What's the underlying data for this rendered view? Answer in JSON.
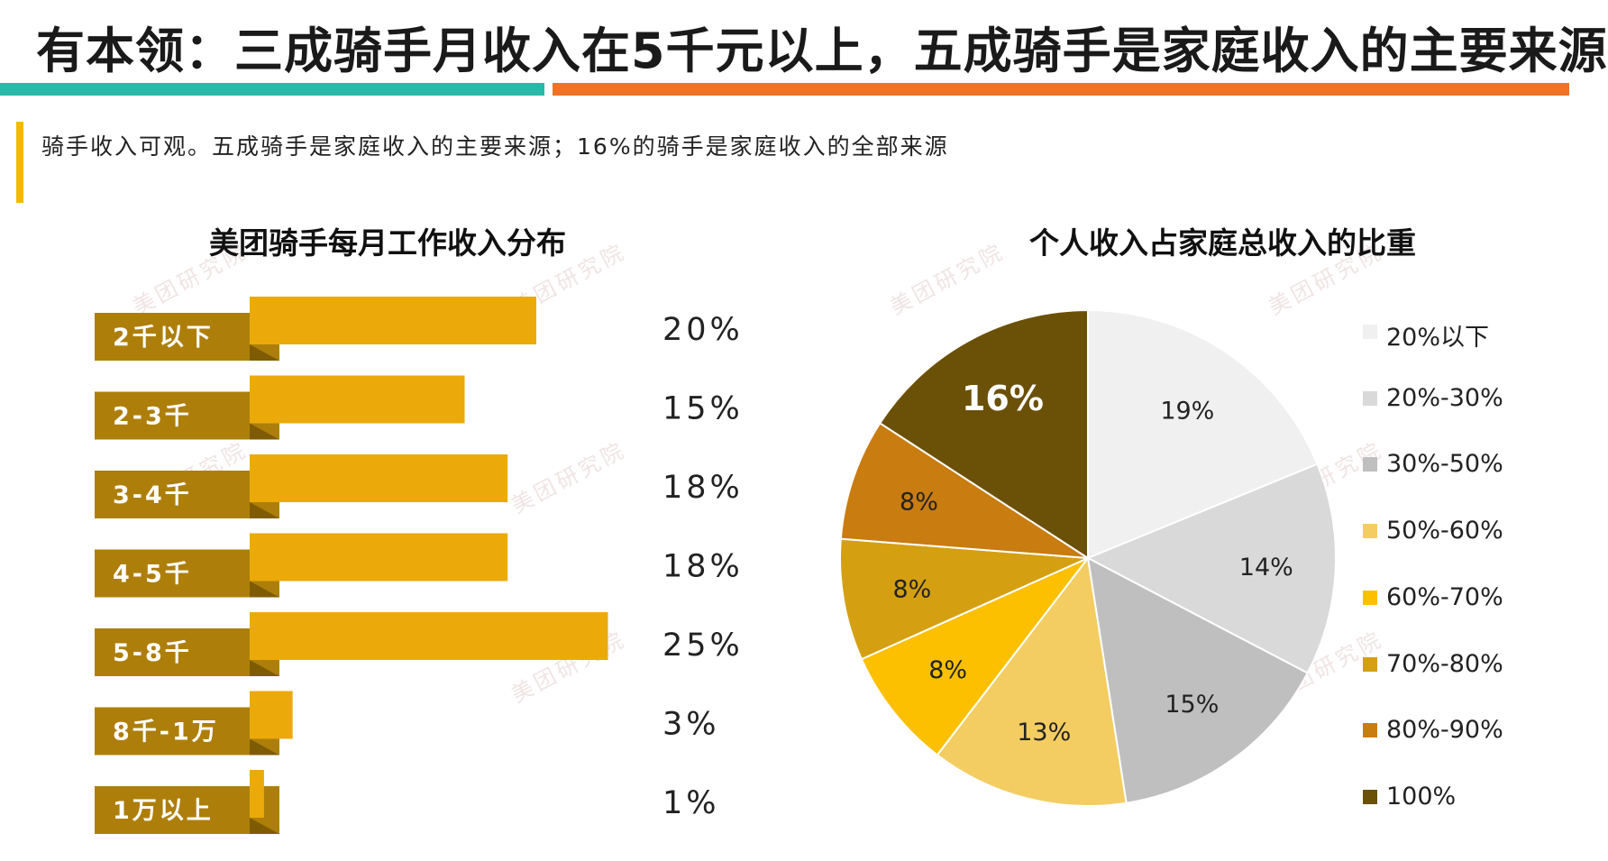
{
  "page": {
    "title": "有本领：三成骑手月收入在5千元以上，五成骑手是家庭收入的主要来源",
    "subtitle": "骑手收入可观。五成骑手是家庭收入的主要来源；16%的骑手是家庭收入的全部来源",
    "watermark": "美团研究院"
  },
  "colors": {
    "teal": "#29b9a8",
    "orange": "#f07224",
    "accent": "#f5b800",
    "bar_front": "#ebaa0a",
    "bar_back": "#ad7f0a",
    "bar_back_shadow": "#7f5c04"
  },
  "chart_data": [
    {
      "type": "bar",
      "orientation": "horizontal",
      "title": "美团骑手每月工作收入分布",
      "categories": [
        "2千以下",
        "2-3千",
        "3-4千",
        "4-5千",
        "5-8千",
        "8千-1万",
        "1万以上"
      ],
      "values": [
        20,
        15,
        18,
        18,
        25,
        3,
        1
      ],
      "value_labels": [
        "20%",
        "15%",
        "18%",
        "18%",
        "25%",
        "3%",
        "1%"
      ],
      "unit": "%"
    },
    {
      "type": "pie",
      "title": "个人收入占家庭总收入的比重",
      "legend_position": "right",
      "slices": [
        {
          "name": "20%以下",
          "value": 19,
          "label": "19%",
          "color": "#f0f0f0"
        },
        {
          "name": "20%-30%",
          "value": 14,
          "label": "14%",
          "color": "#d9d9d9"
        },
        {
          "name": "30%-50%",
          "value": 15,
          "label": "15%",
          "color": "#bfbfbf"
        },
        {
          "name": "50%-60%",
          "value": 13,
          "label": "13%",
          "color": "#f3cd62"
        },
        {
          "name": "60%-70%",
          "value": 8,
          "label": "8%",
          "color": "#fcc000"
        },
        {
          "name": "70%-80%",
          "value": 8,
          "label": "8%",
          "color": "#d4a012"
        },
        {
          "name": "80%-90%",
          "value": 8,
          "label": "8%",
          "color": "#c97c10"
        },
        {
          "name": "100%",
          "value": 16,
          "label": "16%",
          "color": "#6b5008"
        }
      ]
    }
  ]
}
